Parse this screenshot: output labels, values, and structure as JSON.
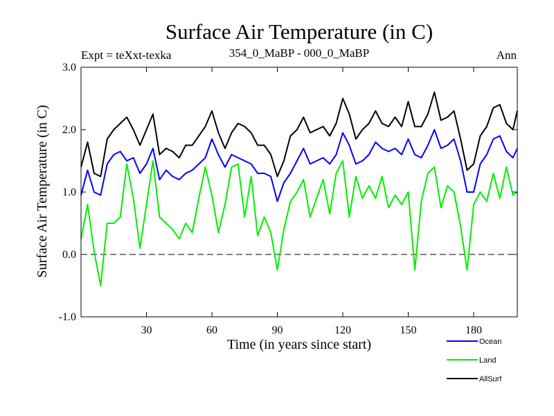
{
  "chart_data": {
    "type": "line",
    "title": "Surface Air Temperature (in C)",
    "subtitle_left": "Expt = teXxt-texka",
    "subtitle_center": "354_0_MaBP - 000_0_MaBP",
    "subtitle_right": "Ann",
    "xlabel": "Time (in years since start)",
    "ylabel": "Surface Air Temperature (in C)",
    "xlim": [
      0,
      200
    ],
    "ylim": [
      -1.0,
      3.0
    ],
    "xticks": [
      30,
      60,
      90,
      120,
      150,
      180
    ],
    "yticks": [
      -1.0,
      0.0,
      1.0,
      2.0,
      3.0
    ],
    "ytick_labels": [
      "-1.0",
      "0.0",
      "1.0",
      "2.0",
      "3.0"
    ],
    "reference_line": 0.0,
    "legend_position": "bottom-right outside",
    "series": [
      {
        "name": "Ocean",
        "color": "#0000ff",
        "x": [
          0,
          3,
          6,
          9,
          12,
          15,
          18,
          21,
          24,
          27,
          30,
          33,
          36,
          39,
          42,
          45,
          48,
          51,
          54,
          57,
          60,
          63,
          66,
          69,
          72,
          75,
          78,
          81,
          84,
          87,
          90,
          93,
          96,
          99,
          102,
          105,
          108,
          111,
          114,
          117,
          120,
          123,
          126,
          129,
          132,
          135,
          138,
          141,
          144,
          147,
          150,
          153,
          156,
          159,
          162,
          165,
          168,
          171,
          174,
          177,
          180,
          183,
          186,
          189,
          192,
          195,
          198,
          200
        ],
        "values": [
          0.95,
          1.35,
          1.0,
          0.95,
          1.45,
          1.6,
          1.65,
          1.5,
          1.55,
          1.3,
          1.45,
          1.7,
          1.2,
          1.35,
          1.25,
          1.2,
          1.3,
          1.35,
          1.45,
          1.55,
          1.85,
          1.6,
          1.4,
          1.6,
          1.55,
          1.5,
          1.45,
          1.3,
          1.3,
          1.25,
          0.85,
          1.15,
          1.3,
          1.5,
          1.7,
          1.45,
          1.5,
          1.55,
          1.45,
          1.6,
          1.95,
          1.75,
          1.45,
          1.5,
          1.6,
          1.8,
          1.7,
          1.65,
          1.7,
          1.6,
          1.85,
          1.6,
          1.55,
          1.75,
          2.0,
          1.7,
          1.75,
          1.85,
          1.5,
          1.0,
          1.0,
          1.45,
          1.6,
          1.85,
          1.9,
          1.65,
          1.55,
          1.7
        ]
      },
      {
        "name": "Land",
        "color": "#00ee00",
        "x": [
          0,
          3,
          6,
          9,
          12,
          15,
          18,
          21,
          24,
          27,
          30,
          33,
          36,
          39,
          42,
          45,
          48,
          51,
          54,
          57,
          60,
          63,
          66,
          69,
          72,
          75,
          78,
          81,
          84,
          87,
          90,
          93,
          96,
          99,
          102,
          105,
          108,
          111,
          114,
          117,
          120,
          123,
          126,
          129,
          132,
          135,
          138,
          141,
          144,
          147,
          150,
          153,
          156,
          159,
          162,
          165,
          168,
          171,
          174,
          177,
          180,
          183,
          186,
          189,
          192,
          195,
          198,
          200
        ],
        "values": [
          0.25,
          0.8,
          0.05,
          -0.5,
          0.5,
          0.5,
          0.6,
          1.45,
          0.9,
          0.1,
          0.8,
          1.5,
          0.6,
          0.5,
          0.4,
          0.25,
          0.5,
          0.35,
          0.9,
          1.4,
          0.95,
          0.35,
          0.8,
          1.4,
          1.45,
          0.6,
          1.25,
          0.3,
          0.6,
          0.35,
          -0.25,
          0.4,
          0.85,
          1.0,
          1.2,
          0.6,
          0.9,
          1.2,
          0.65,
          1.3,
          1.5,
          0.6,
          1.25,
          0.9,
          1.1,
          0.9,
          1.25,
          0.75,
          0.95,
          0.8,
          1.0,
          -0.25,
          0.85,
          1.3,
          1.4,
          0.75,
          1.1,
          1.0,
          0.45,
          -0.25,
          0.8,
          1.0,
          0.85,
          1.3,
          0.9,
          1.4,
          0.95,
          1.0
        ]
      },
      {
        "name": "AllSurf",
        "color": "#000000",
        "x": [
          0,
          3,
          6,
          9,
          12,
          15,
          18,
          21,
          24,
          27,
          30,
          33,
          36,
          39,
          42,
          45,
          48,
          51,
          54,
          57,
          60,
          63,
          66,
          69,
          72,
          75,
          78,
          81,
          84,
          87,
          90,
          93,
          96,
          99,
          102,
          105,
          108,
          111,
          114,
          117,
          120,
          123,
          126,
          129,
          132,
          135,
          138,
          141,
          144,
          147,
          150,
          153,
          156,
          159,
          162,
          165,
          168,
          171,
          174,
          177,
          180,
          183,
          186,
          189,
          192,
          195,
          198,
          200
        ],
        "values": [
          1.4,
          1.8,
          1.3,
          1.25,
          1.85,
          2.0,
          2.1,
          2.2,
          2.0,
          1.75,
          2.0,
          2.25,
          1.6,
          1.7,
          1.65,
          1.55,
          1.75,
          1.75,
          1.9,
          2.05,
          2.3,
          1.95,
          1.7,
          1.95,
          2.1,
          2.05,
          1.95,
          1.75,
          1.75,
          1.6,
          1.25,
          1.5,
          1.9,
          2.0,
          2.2,
          1.95,
          2.0,
          2.05,
          1.9,
          2.1,
          2.5,
          2.25,
          1.85,
          2.0,
          2.1,
          2.3,
          2.1,
          2.05,
          2.2,
          2.05,
          2.45,
          2.05,
          2.05,
          2.25,
          2.6,
          2.15,
          2.2,
          2.3,
          1.85,
          1.35,
          1.45,
          1.9,
          2.05,
          2.35,
          2.4,
          2.1,
          2.0,
          2.3
        ]
      }
    ]
  }
}
